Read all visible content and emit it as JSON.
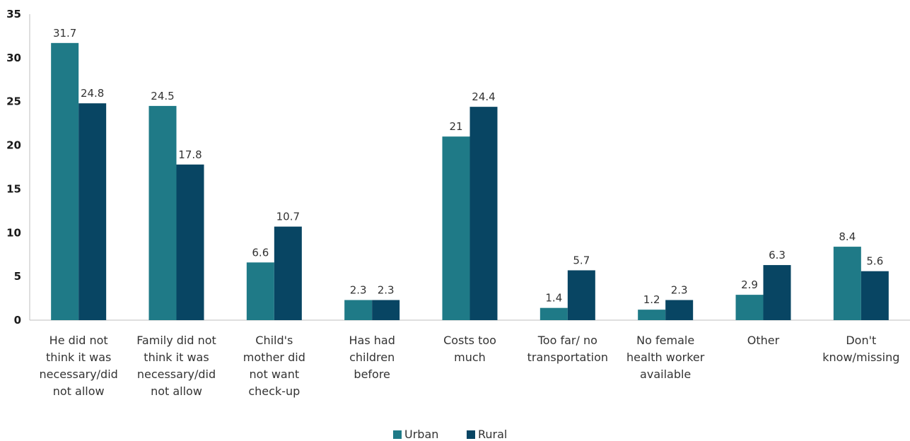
{
  "chart_data": {
    "type": "bar",
    "categories": [
      "He did not think it was necessary/did not allow",
      "Family did not think it was necessary/did not allow",
      "Child's mother did not want check-up",
      "Has had children before",
      "Costs too much",
      "Too far/ no transportation",
      "No female health worker available",
      "Other",
      "Don't know/missing"
    ],
    "category_lines": [
      [
        "He did not",
        "think it was",
        "necessary/did",
        "not allow"
      ],
      [
        "Family did not",
        "think it was",
        "necessary/did",
        "not allow"
      ],
      [
        "Child's",
        "mother did",
        "not want",
        "check-up"
      ],
      [
        "Has had",
        "children",
        "before"
      ],
      [
        "Costs too",
        "much"
      ],
      [
        "Too far/ no",
        "transportation"
      ],
      [
        "No female",
        "health worker",
        "available"
      ],
      [
        "Other"
      ],
      [
        "Don't",
        "know/missing"
      ]
    ],
    "series": [
      {
        "name": "Urban",
        "color": "#1f7a87",
        "values": [
          31.7,
          24.5,
          6.6,
          2.3,
          21,
          1.4,
          1.2,
          2.9,
          8.4
        ]
      },
      {
        "name": "Rural",
        "color": "#084563",
        "values": [
          24.8,
          17.8,
          10.7,
          2.3,
          24.4,
          5.7,
          2.3,
          6.3,
          5.6
        ]
      }
    ],
    "data_labels": [
      [
        "31.7",
        "24.5",
        "6.6",
        "2.3",
        "21",
        "1.4",
        "1.2",
        "2.9",
        "8.4"
      ],
      [
        "24.8",
        "17.8",
        "10.7",
        "2.3",
        "24.4",
        "5.7",
        "2.3",
        "6.3",
        "5.6"
      ]
    ],
    "ylim": [
      0,
      35
    ],
    "yticks": [
      0,
      5,
      10,
      15,
      20,
      25,
      30,
      35
    ],
    "grid": false,
    "legend_position": "bottom-center",
    "title": "",
    "xlabel": "",
    "ylabel": ""
  }
}
